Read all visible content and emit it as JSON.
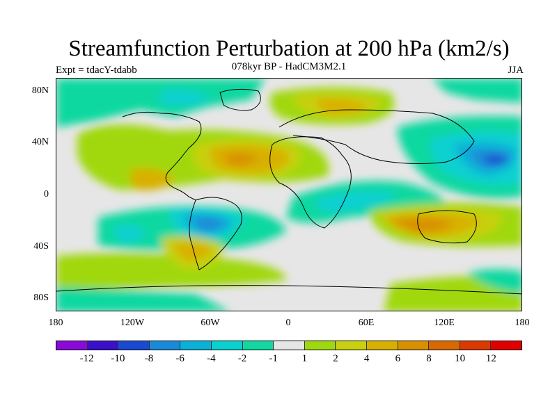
{
  "title": "Streamfunction Perturbation at 200 hPa (km2/s)",
  "subtitle": "078kyr BP - HadCM3M2.1",
  "experiment": "Expt = tdacY-tdabb",
  "season": "JJA",
  "axes": {
    "y_ticks": [
      "80N",
      "40N",
      "0",
      "40S",
      "80S"
    ],
    "x_ticks": [
      "180",
      "120W",
      "60W",
      "0",
      "60E",
      "120E",
      "180"
    ]
  },
  "colorbar": {
    "colors": [
      "#8a0ad8",
      "#3a10c8",
      "#1a4ad0",
      "#1a8ad8",
      "#0ab0d8",
      "#0ad0d0",
      "#10d8a0",
      "#e6e6e6",
      "#a0d810",
      "#c8d010",
      "#d8b000",
      "#d89000",
      "#d86800",
      "#d83a00",
      "#e00000"
    ],
    "labels": [
      "-12",
      "-10",
      "-8",
      "-6",
      "-4",
      "-2",
      "-1",
      "1",
      "2",
      "4",
      "6",
      "8",
      "10",
      "12"
    ]
  }
}
